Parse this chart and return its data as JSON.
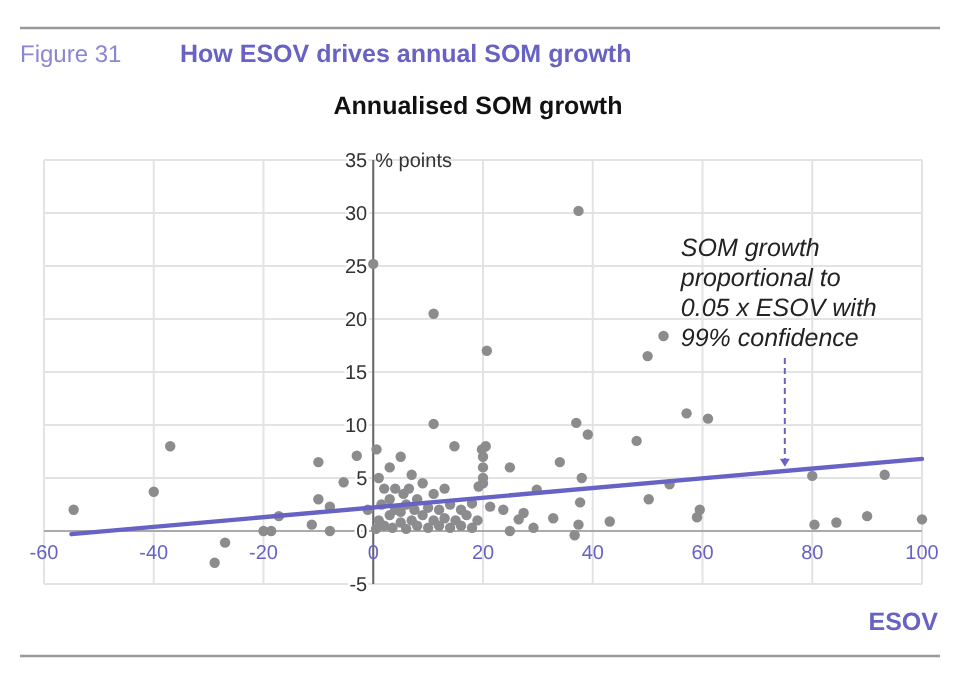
{
  "chart_data": {
    "type": "scatter",
    "title": "How ESOV drives annual SOM growth",
    "subtitle": "Annualised SOM growth",
    "xlabel": "ESOV",
    "ylabel": "% points",
    "annotations": [
      "Figure 31",
      {
        "text": "SOM growth proportional to 0.05 x ESOV with 99% confidence",
        "x": 75,
        "y": 5.5
      }
    ],
    "series": [
      {
        "color": "#8c8c8e",
        "marker": "circle",
        "x": [
          0,
          11,
          20.7,
          37.4,
          52.9,
          50,
          57.1,
          61,
          37,
          39.1,
          48,
          34,
          24.9,
          19.8,
          38,
          37.7,
          50.2,
          54,
          59.5,
          59,
          80,
          93.2,
          80.4,
          84.4,
          90,
          100,
          43.1,
          37.4,
          36.7,
          32.8,
          29.8,
          29.2,
          27.4,
          26.5,
          24.9,
          23.7,
          21.3,
          19.2,
          -54.6,
          -40,
          -37,
          -28.9,
          -27,
          -20,
          -18.6,
          -17.2,
          -10,
          -10,
          -11.2,
          -7.9,
          -5.4,
          -3,
          0.6,
          11,
          14.8,
          -7.9,
          0.5,
          1,
          1.5,
          2,
          2,
          3,
          3,
          3.5,
          4,
          4,
          5,
          5,
          5.5,
          6,
          6,
          6.5,
          7,
          7,
          7.5,
          8,
          8,
          9,
          9,
          10,
          10,
          11,
          11,
          12,
          12,
          13,
          13,
          14,
          14,
          15,
          16,
          16,
          17,
          18,
          18,
          19,
          -1,
          1,
          3,
          5,
          20,
          20,
          20,
          20.5,
          20
        ],
        "values": [
          25.2,
          20.5,
          17,
          30.2,
          18.4,
          16.5,
          11.1,
          10.6,
          10.2,
          9.1,
          8.5,
          6.5,
          6,
          7.7,
          5,
          2.7,
          3,
          4.4,
          2,
          1.3,
          5.2,
          5.3,
          0.6,
          0.8,
          1.4,
          1.1,
          0.9,
          0.6,
          -0.4,
          1.2,
          3.9,
          0.3,
          1.7,
          1.1,
          0,
          2,
          2.3,
          4.2,
          2,
          3.7,
          8,
          -3,
          -1.1,
          0,
          0,
          1.4,
          6.5,
          3,
          0.6,
          2.3,
          4.6,
          7.1,
          7.7,
          10.1,
          8,
          0,
          0.2,
          1,
          2.5,
          0.5,
          4,
          1.5,
          3,
          0.3,
          2,
          4,
          0.8,
          1.8,
          3.5,
          0.2,
          2.5,
          4,
          1,
          5.3,
          2,
          0.5,
          3,
          1.5,
          4.5,
          0.3,
          2.2,
          1,
          3.5,
          0.5,
          2,
          1.2,
          4,
          0.3,
          2.5,
          1,
          0.5,
          2,
          1.5,
          0.3,
          2.6,
          1,
          2,
          5,
          6,
          7,
          4.5,
          6,
          7,
          8,
          5
        ]
      },
      {
        "type": "line",
        "color": "#6762c4",
        "x": [
          -55,
          100
        ],
        "values": [
          -0.3,
          6.8
        ]
      }
    ],
    "xlim": [
      -60,
      100
    ],
    "ylim": [
      -5,
      35
    ],
    "xticks": [
      -60,
      -40,
      -20,
      0,
      20,
      40,
      60,
      80,
      100
    ],
    "yticks": [
      -5,
      0,
      5,
      10,
      15,
      20,
      25,
      30,
      35
    ],
    "grid": true,
    "line_style": "solid"
  }
}
